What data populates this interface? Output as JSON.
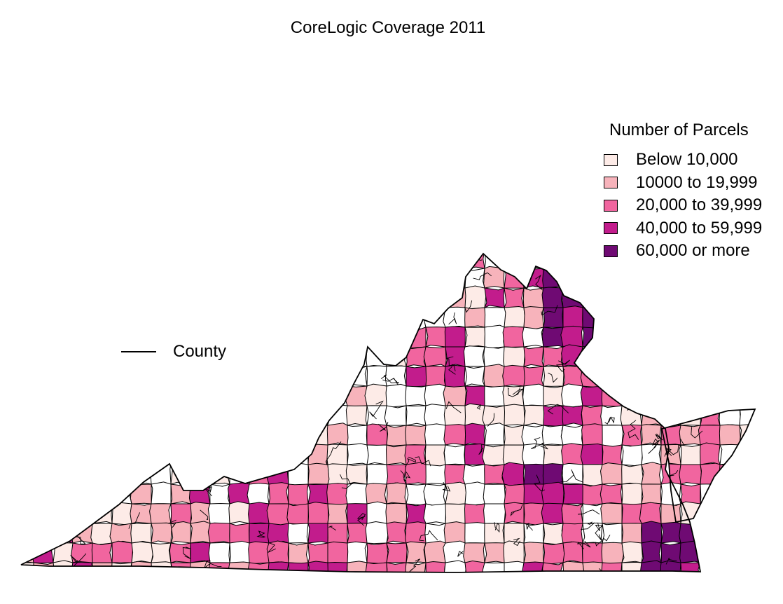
{
  "title": "CoreLogic Coverage 2011",
  "legend": {
    "title": "Number of Parcels",
    "items": [
      {
        "label": "Below 10,000",
        "color": "#FDEBE7"
      },
      {
        "label": "10000 to 19,999",
        "color": "#F7B3BB"
      },
      {
        "label": "20,000 to 39,999",
        "color": "#F1659F"
      },
      {
        "label": "40,000 to 59,999",
        "color": "#C21C8C"
      },
      {
        "label": "60,000 or more",
        "color": "#6F0A73"
      }
    ]
  },
  "line_key": {
    "label": "County"
  },
  "colors": {
    "outline": "#000000",
    "no_data": "#FFFFFF"
  }
}
